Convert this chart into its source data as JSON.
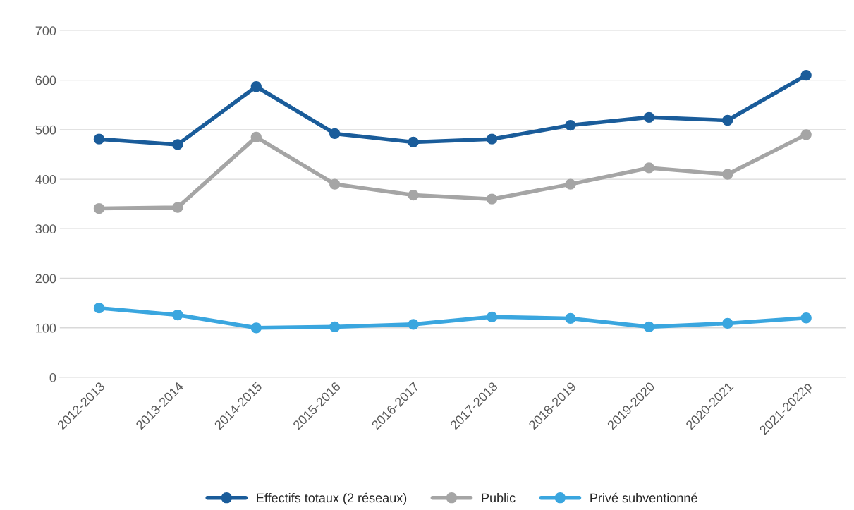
{
  "chart_data": {
    "type": "line",
    "categories": [
      "2012-2013",
      "2013-2014",
      "2014-2015",
      "2015-2016",
      "2016-2017",
      "2017-2018",
      "2018-2019",
      "2019-2020",
      "2020-2021",
      "2021-2022p"
    ],
    "series": [
      {
        "name": "Effectifs totaux (2 réseaux)",
        "color": "#1a5c9a",
        "values": [
          481,
          470,
          587,
          492,
          475,
          481,
          509,
          525,
          519,
          610
        ]
      },
      {
        "name": "Public",
        "color": "#a5a5a5",
        "values": [
          341,
          343,
          485,
          390,
          368,
          360,
          390,
          423,
          410,
          490
        ]
      },
      {
        "name": "Privé subventionné",
        "color": "#3aa6df",
        "values": [
          140,
          126,
          100,
          102,
          107,
          122,
          119,
          102,
          109,
          120
        ]
      }
    ],
    "ylim": [
      0,
      700
    ],
    "yticks": [
      0,
      100,
      200,
      300,
      400,
      500,
      600,
      700
    ],
    "grid": "y",
    "legend": "bottom",
    "marker": "circle",
    "line_style": "solid"
  }
}
